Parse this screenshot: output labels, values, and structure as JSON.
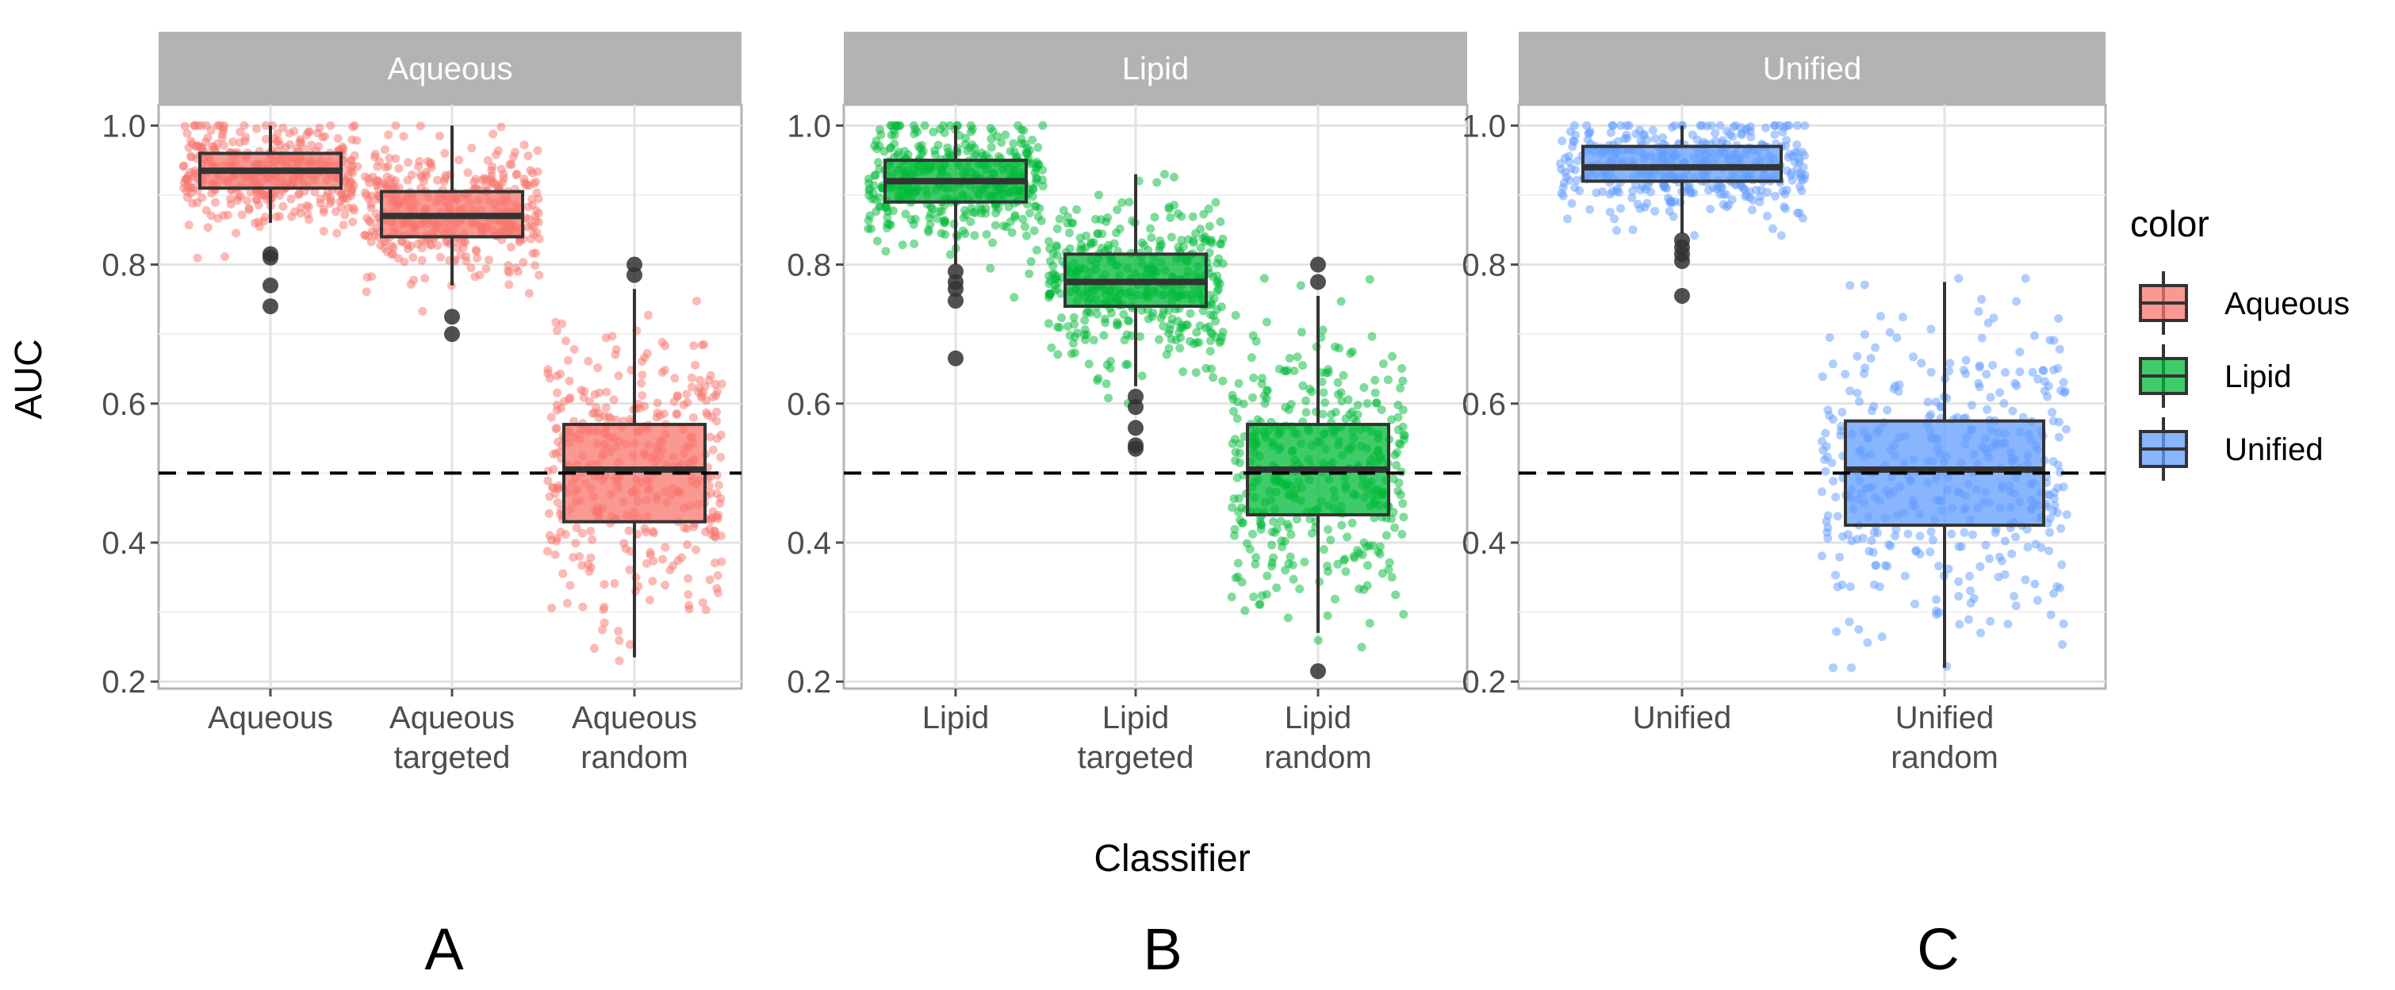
{
  "figure": {
    "xlabel": "Classifier",
    "ylabel": "AUC",
    "panel_letters": [
      "A",
      "B",
      "C"
    ],
    "legend": {
      "title": "color",
      "entries": [
        {
          "label": "Aqueous",
          "color": "#F8766D"
        },
        {
          "label": "Lipid",
          "color": "#00BA38"
        },
        {
          "label": "Unified",
          "color": "#619CFF"
        }
      ]
    }
  },
  "chart_data": {
    "type": "box",
    "ylim": [
      0.19,
      1.03
    ],
    "y_ticks": [
      0.2,
      0.4,
      0.6,
      0.8,
      1.0
    ],
    "y_tick_labels": [
      "0.2",
      "0.4",
      "0.6",
      "0.8",
      "1.0"
    ],
    "reference_line": {
      "y": 0.5,
      "style": "dashed"
    },
    "grid": true,
    "legend_position": "right",
    "facets": [
      {
        "title": "Aqueous",
        "letter": "A",
        "color": "#F8766D",
        "boxes": [
          {
            "label": [
              "Aqueous"
            ],
            "min": 0.86,
            "q1": 0.91,
            "median": 0.935,
            "q3": 0.96,
            "max": 1.0,
            "outliers": [
              0.815,
              0.81,
              0.77,
              0.74
            ],
            "points_range": [
              0.74,
              1.0
            ]
          },
          {
            "label": [
              "Aqueous",
              "targeted"
            ],
            "min": 0.77,
            "q1": 0.84,
            "median": 0.87,
            "q3": 0.905,
            "max": 1.0,
            "outliers": [
              0.725,
              0.7
            ],
            "points_range": [
              0.7,
              1.0
            ]
          },
          {
            "label": [
              "Aqueous",
              "random"
            ],
            "min": 0.235,
            "q1": 0.43,
            "median": 0.505,
            "q3": 0.57,
            "max": 0.765,
            "outliers": [
              0.8,
              0.785
            ],
            "points_range": [
              0.23,
              0.81
            ]
          }
        ]
      },
      {
        "title": "Lipid",
        "letter": "B",
        "color": "#00BA38",
        "boxes": [
          {
            "label": [
              "Lipid"
            ],
            "min": 0.8,
            "q1": 0.89,
            "median": 0.92,
            "q3": 0.95,
            "max": 1.0,
            "outliers": [
              0.79,
              0.775,
              0.765,
              0.748,
              0.665
            ],
            "points_range": [
              0.665,
              1.0
            ]
          },
          {
            "label": [
              "Lipid",
              "targeted"
            ],
            "min": 0.625,
            "q1": 0.74,
            "median": 0.775,
            "q3": 0.815,
            "max": 0.93,
            "outliers": [
              0.61,
              0.595,
              0.565,
              0.54,
              0.535
            ],
            "points_range": [
              0.53,
              0.93
            ]
          },
          {
            "label": [
              "Lipid",
              "random"
            ],
            "min": 0.27,
            "q1": 0.44,
            "median": 0.505,
            "q3": 0.57,
            "max": 0.755,
            "outliers": [
              0.8,
              0.775,
              0.215
            ],
            "points_range": [
              0.215,
              0.8
            ]
          }
        ]
      },
      {
        "title": "Unified",
        "letter": "C",
        "color": "#619CFF",
        "boxes": [
          {
            "label": [
              "Unified"
            ],
            "min": 0.845,
            "q1": 0.92,
            "median": 0.94,
            "q3": 0.97,
            "max": 1.0,
            "outliers": [
              0.835,
              0.825,
              0.815,
              0.805,
              0.755
            ],
            "points_range": [
              0.75,
              1.0
            ]
          },
          {
            "label": [
              "Unified",
              "random"
            ],
            "min": 0.22,
            "q1": 0.425,
            "median": 0.505,
            "q3": 0.575,
            "max": 0.775,
            "outliers": [],
            "points_range": [
              0.22,
              0.78
            ]
          }
        ]
      }
    ]
  }
}
